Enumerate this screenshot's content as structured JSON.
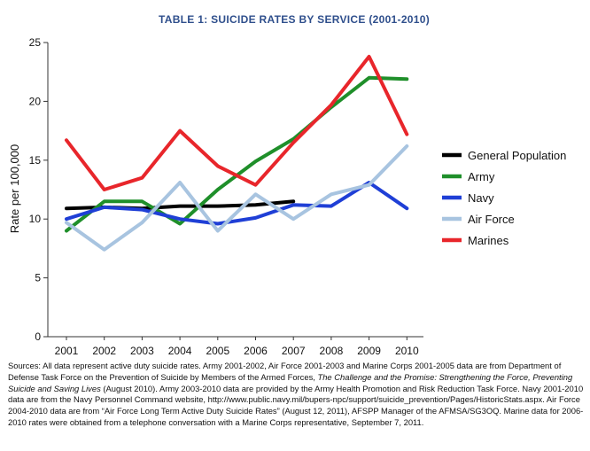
{
  "chart_data": {
    "type": "line",
    "title": "TABLE 1: SUICIDE RATES BY SERVICE (2001-2010)",
    "xlabel": "",
    "ylabel": "Rate per 100,000",
    "x": [
      2001,
      2002,
      2003,
      2004,
      2005,
      2006,
      2007,
      2008,
      2009,
      2010
    ],
    "xticks": [
      "2001",
      "2002",
      "2003",
      "2004",
      "2005",
      "2006",
      "2007",
      "2008",
      "2009",
      "2010"
    ],
    "yticks": [
      "0",
      "5",
      "10",
      "15",
      "20",
      "25"
    ],
    "ylim": [
      0,
      25
    ],
    "grid": false,
    "legend_position": "right",
    "series": [
      {
        "name": "General Population",
        "color": "#000000",
        "x": [
          2001,
          2002,
          2003,
          2004,
          2005,
          2006,
          2007
        ],
        "values": [
          10.9,
          11.0,
          10.9,
          11.1,
          11.1,
          11.2,
          11.5
        ]
      },
      {
        "name": "Army",
        "color": "#1f8f2a",
        "x": [
          2001,
          2002,
          2003,
          2004,
          2005,
          2006,
          2007,
          2008,
          2009,
          2010
        ],
        "values": [
          9.0,
          11.5,
          11.5,
          9.6,
          12.5,
          14.9,
          16.8,
          19.5,
          22.0,
          21.9
        ]
      },
      {
        "name": "Navy",
        "color": "#1f3fd6",
        "x": [
          2001,
          2002,
          2003,
          2004,
          2005,
          2006,
          2007,
          2008,
          2009,
          2010
        ],
        "values": [
          10.0,
          11.0,
          10.8,
          10.0,
          9.6,
          10.1,
          11.2,
          11.1,
          13.1,
          10.9
        ]
      },
      {
        "name": "Air Force",
        "color": "#a8c4e0",
        "x": [
          2001,
          2002,
          2003,
          2004,
          2005,
          2006,
          2007,
          2008,
          2009,
          2010
        ],
        "values": [
          9.7,
          7.4,
          9.7,
          13.1,
          9.0,
          12.1,
          10.0,
          12.1,
          12.9,
          16.2
        ]
      },
      {
        "name": "Marines",
        "color": "#e8262b",
        "x": [
          2001,
          2002,
          2003,
          2004,
          2005,
          2006,
          2007,
          2008,
          2009,
          2010
        ],
        "values": [
          16.7,
          12.5,
          13.5,
          17.5,
          14.5,
          12.9,
          16.5,
          19.7,
          23.8,
          17.2
        ]
      }
    ]
  },
  "sources": {
    "part1": "Sources: All data represent active duty suicide rates. Army 2001-2002, Air Force 2001-2003 and Marine Corps 2001-2005 data are from Department of Defense Task Force on the Prevention of Suicide by Members of the Armed Forces, ",
    "italic": "The Challenge and the Promise: Strengthening the Force, Preventing Suicide and Saving Lives",
    "part2": " (August 2010). Army 2003-2010 data are provided by the Army Health Promotion and Risk Reduction Task Force. Navy 2001-2010 data are from the Navy Personnel Command website, http://www.public.navy.mil/bupers-npc/support/suicide_prevention/Pages/HistoricStats.aspx. Air Force 2004-2010 data are from “Air Force Long Term Active Duty Suicide Rates” (August 12, 2011), AFSPP Manager of the AFMSA/SG3OQ. Marine data for 2006-2010 rates were obtained from a telephone conversation with a Marine Corps representative, September 7, 2011."
  }
}
